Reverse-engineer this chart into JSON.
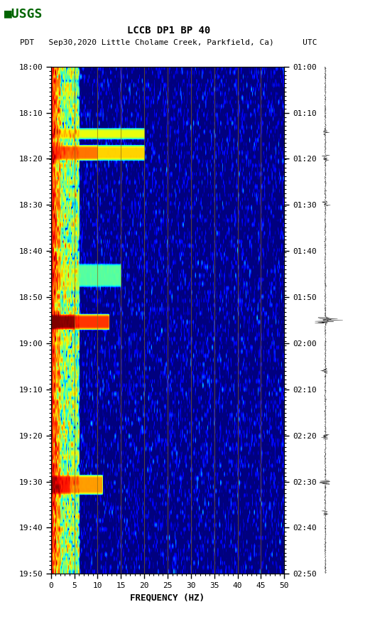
{
  "title_line1": "LCCB DP1 BP 40",
  "title_line2": "PDT   Sep30,2020 Little Cholame Creek, Parkfield, Ca)      UTC",
  "xlabel": "FREQUENCY (HZ)",
  "freq_min": 0,
  "freq_max": 50,
  "yticks_left": [
    "18:00",
    "18:10",
    "18:20",
    "18:30",
    "18:40",
    "18:50",
    "19:00",
    "19:10",
    "19:20",
    "19:30",
    "19:40",
    "19:50"
  ],
  "yticks_right": [
    "01:00",
    "01:10",
    "01:20",
    "01:30",
    "01:40",
    "01:50",
    "02:00",
    "02:10",
    "02:20",
    "02:30",
    "02:40",
    "02:50"
  ],
  "freq_ticks": [
    0,
    5,
    10,
    15,
    20,
    25,
    30,
    35,
    40,
    45,
    50
  ],
  "vertical_lines_freq": [
    5,
    10,
    15,
    20,
    25,
    30,
    35,
    40,
    45
  ],
  "background_color": "#ffffff",
  "figsize": [
    5.52,
    8.92
  ],
  "dpi": 100,
  "n_time": 120,
  "n_freq": 250,
  "noise_seed": 42
}
